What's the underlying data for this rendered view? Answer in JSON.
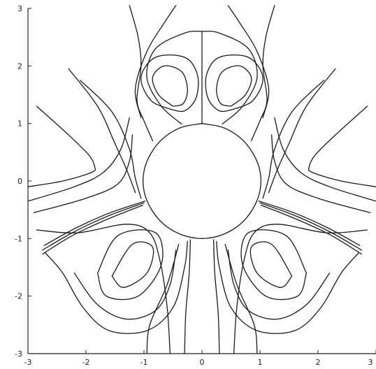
{
  "chart_data": {
    "type": "line",
    "title": "",
    "xlabel": "",
    "ylabel": "",
    "xlim": [
      -3,
      3
    ],
    "ylim": [
      -3,
      3
    ],
    "grid": false,
    "x_ticks": [
      -3,
      -2,
      -1,
      0,
      1,
      2,
      3
    ],
    "y_ticks": [
      -3,
      -2,
      -1,
      0,
      1,
      2,
      3
    ],
    "x_tick_labels": [
      "-3",
      "-2",
      "-1",
      "0",
      "1",
      "2",
      "3"
    ],
    "y_tick_labels": [
      "-3",
      "-2",
      "-1",
      "0",
      "1",
      "2",
      "3"
    ],
    "line_color": "#1a1a1a",
    "series": [
      {
        "points": [
          [
            0.0,
            1.0
          ],
          [
            0.36,
            0.93
          ],
          [
            0.66,
            0.75
          ],
          [
            0.88,
            0.48
          ],
          [
            1.0,
            0.17
          ],
          [
            1.0,
            -0.17
          ],
          [
            0.88,
            -0.48
          ],
          [
            0.66,
            -0.75
          ],
          [
            0.36,
            -0.93
          ],
          [
            0.0,
            -1.0
          ],
          [
            -0.36,
            -0.93
          ],
          [
            -0.66,
            -0.75
          ],
          [
            -0.88,
            -0.48
          ],
          [
            -1.0,
            -0.17
          ],
          [
            -1.0,
            0.17
          ],
          [
            -0.88,
            0.48
          ],
          [
            -0.66,
            0.75
          ],
          [
            -0.36,
            0.93
          ],
          [
            0.0,
            1.0
          ]
        ]
      },
      {
        "points": [
          [
            0.0,
            1.0
          ],
          [
            0.0,
            2.6
          ]
        ]
      },
      {
        "points": [
          [
            -0.35,
            0.99
          ],
          [
            -0.7,
            1.3
          ],
          [
            -0.95,
            1.8
          ],
          [
            -0.8,
            2.3
          ],
          [
            -0.3,
            2.57
          ],
          [
            0.0,
            2.6
          ],
          [
            0.3,
            2.57
          ],
          [
            0.8,
            2.3
          ],
          [
            0.95,
            1.8
          ],
          [
            0.7,
            1.3
          ],
          [
            0.35,
            0.99
          ]
        ]
      },
      {
        "points": [
          [
            -0.5,
            1.3
          ],
          [
            -0.75,
            1.5
          ],
          [
            -0.85,
            1.8
          ],
          [
            -0.65,
            2.0
          ],
          [
            -0.35,
            1.9
          ],
          [
            -0.25,
            1.6
          ],
          [
            -0.32,
            1.35
          ],
          [
            -0.5,
            1.3
          ]
        ]
      },
      {
        "points": [
          [
            -0.55,
            1.25
          ],
          [
            -0.88,
            1.4
          ],
          [
            -1.05,
            1.8
          ],
          [
            -0.8,
            2.15
          ],
          [
            -0.3,
            2.15
          ],
          [
            -0.08,
            1.85
          ],
          [
            -0.1,
            1.45
          ],
          [
            -0.3,
            1.22
          ],
          [
            -0.55,
            1.25
          ]
        ]
      },
      {
        "points": [
          [
            0.5,
            1.3
          ],
          [
            0.75,
            1.5
          ],
          [
            0.85,
            1.8
          ],
          [
            0.65,
            2.0
          ],
          [
            0.35,
            1.9
          ],
          [
            0.25,
            1.6
          ],
          [
            0.32,
            1.35
          ],
          [
            0.5,
            1.3
          ]
        ]
      },
      {
        "points": [
          [
            0.55,
            1.25
          ],
          [
            0.88,
            1.4
          ],
          [
            1.05,
            1.8
          ],
          [
            0.8,
            2.15
          ],
          [
            0.3,
            2.15
          ],
          [
            0.08,
            1.85
          ],
          [
            0.1,
            1.45
          ],
          [
            0.3,
            1.22
          ],
          [
            0.55,
            1.25
          ]
        ]
      },
      {
        "points": [
          [
            -1.25,
            3.05
          ],
          [
            -1.1,
            2.5
          ],
          [
            -1.05,
            2.0
          ],
          [
            -1.12,
            1.4
          ],
          [
            -1.0,
            1.05
          ],
          [
            -0.85,
            0.7
          ]
        ]
      },
      {
        "points": [
          [
            1.25,
            3.05
          ],
          [
            1.1,
            2.5
          ],
          [
            1.05,
            2.0
          ],
          [
            1.12,
            1.4
          ],
          [
            1.0,
            1.05
          ],
          [
            0.85,
            0.7
          ]
        ]
      },
      {
        "points": [
          [
            -0.45,
            3.05
          ],
          [
            -0.65,
            2.75
          ],
          [
            -0.95,
            2.25
          ],
          [
            -1.15,
            1.6
          ],
          [
            -1.05,
            1.1
          ]
        ]
      },
      {
        "points": [
          [
            0.45,
            3.05
          ],
          [
            0.65,
            2.75
          ],
          [
            0.95,
            2.25
          ],
          [
            1.15,
            1.6
          ],
          [
            1.05,
            1.1
          ]
        ]
      },
      {
        "points": [
          [
            -2.3,
            1.95
          ],
          [
            -1.8,
            1.3
          ],
          [
            -1.5,
            0.65
          ],
          [
            -1.3,
            0.2
          ],
          [
            -1.15,
            -0.2
          ]
        ]
      },
      {
        "points": [
          [
            2.3,
            1.95
          ],
          [
            1.8,
            1.3
          ],
          [
            1.5,
            0.65
          ],
          [
            1.3,
            0.2
          ],
          [
            1.15,
            -0.2
          ]
        ]
      },
      {
        "points": [
          [
            -2.1,
            1.75
          ],
          [
            -1.55,
            1.2
          ],
          [
            -1.25,
            0.55
          ],
          [
            -1.15,
            0.05
          ],
          [
            -1.05,
            -0.3
          ]
        ]
      },
      {
        "points": [
          [
            2.1,
            1.75
          ],
          [
            1.55,
            1.2
          ],
          [
            1.25,
            0.55
          ],
          [
            1.15,
            0.05
          ],
          [
            1.05,
            -0.3
          ]
        ]
      },
      {
        "points": [
          [
            -2.85,
            1.3
          ],
          [
            -2.3,
            0.8
          ],
          [
            -1.95,
            0.45
          ],
          [
            -1.85,
            0.25
          ],
          [
            -1.9,
            0.15
          ],
          [
            -2.4,
            0.0
          ],
          [
            -3.0,
            -0.1
          ]
        ]
      },
      {
        "points": [
          [
            -3.0,
            -0.35
          ],
          [
            -2.2,
            -0.1
          ],
          [
            -1.7,
            0.15
          ],
          [
            -1.4,
            0.55
          ],
          [
            -1.25,
            1.1
          ]
        ]
      },
      {
        "points": [
          [
            -2.9,
            -0.55
          ],
          [
            -2.0,
            -0.3
          ],
          [
            -1.45,
            -0.05
          ],
          [
            -1.25,
            0.35
          ],
          [
            -1.2,
            0.8
          ]
        ]
      },
      {
        "points": [
          [
            2.85,
            1.3
          ],
          [
            2.3,
            0.8
          ],
          [
            1.95,
            0.45
          ],
          [
            1.85,
            0.25
          ],
          [
            1.9,
            0.15
          ],
          [
            2.4,
            0.0
          ],
          [
            3.0,
            -0.1
          ]
        ]
      },
      {
        "points": [
          [
            3.0,
            -0.35
          ],
          [
            2.2,
            -0.1
          ],
          [
            1.7,
            0.15
          ],
          [
            1.4,
            0.55
          ],
          [
            1.25,
            1.1
          ]
        ]
      },
      {
        "points": [
          [
            2.9,
            -0.55
          ],
          [
            2.0,
            -0.3
          ],
          [
            1.45,
            -0.05
          ],
          [
            1.25,
            0.35
          ],
          [
            1.2,
            0.8
          ]
        ]
      },
      {
        "points": [
          [
            -1.0,
            -0.38
          ],
          [
            -1.6,
            -0.6
          ],
          [
            -2.2,
            -0.88
          ],
          [
            -2.75,
            -1.2
          ]
        ]
      },
      {
        "points": [
          [
            -1.02,
            -0.42
          ],
          [
            -1.62,
            -0.66
          ],
          [
            -2.22,
            -0.94
          ],
          [
            -2.75,
            -1.27
          ]
        ]
      },
      {
        "points": [
          [
            -0.98,
            -0.35
          ],
          [
            -1.58,
            -0.55
          ],
          [
            -2.18,
            -0.82
          ],
          [
            -2.72,
            -1.12
          ]
        ]
      },
      {
        "points": [
          [
            1.0,
            -0.38
          ],
          [
            1.6,
            -0.6
          ],
          [
            2.2,
            -0.88
          ],
          [
            2.75,
            -1.2
          ]
        ]
      },
      {
        "points": [
          [
            1.02,
            -0.42
          ],
          [
            1.62,
            -0.66
          ],
          [
            2.22,
            -0.94
          ],
          [
            2.75,
            -1.27
          ]
        ]
      },
      {
        "points": [
          [
            0.98,
            -0.35
          ],
          [
            1.58,
            -0.55
          ],
          [
            2.18,
            -0.82
          ],
          [
            2.72,
            -1.12
          ]
        ]
      },
      {
        "points": [
          [
            -1.55,
            -1.65
          ],
          [
            -1.2,
            -1.1
          ],
          [
            -0.85,
            -1.15
          ],
          [
            -0.95,
            -1.6
          ],
          [
            -1.35,
            -1.85
          ],
          [
            -1.55,
            -1.65
          ]
        ]
      },
      {
        "points": [
          [
            -1.8,
            -1.6
          ],
          [
            -1.45,
            -0.95
          ],
          [
            -0.8,
            -0.9
          ],
          [
            -0.7,
            -1.45
          ],
          [
            -1.1,
            -2.0
          ],
          [
            -1.65,
            -2.0
          ],
          [
            -1.8,
            -1.6
          ]
        ]
      },
      {
        "points": [
          [
            1.55,
            -1.65
          ],
          [
            1.2,
            -1.1
          ],
          [
            0.85,
            -1.15
          ],
          [
            0.95,
            -1.6
          ],
          [
            1.35,
            -1.85
          ],
          [
            1.55,
            -1.65
          ]
        ]
      },
      {
        "points": [
          [
            1.8,
            -1.6
          ],
          [
            1.45,
            -0.95
          ],
          [
            0.8,
            -0.9
          ],
          [
            0.7,
            -1.45
          ],
          [
            1.1,
            -2.0
          ],
          [
            1.65,
            -2.0
          ],
          [
            1.8,
            -1.6
          ]
        ]
      },
      {
        "points": [
          [
            -2.85,
            -0.85
          ],
          [
            -2.15,
            -0.9
          ],
          [
            -1.3,
            -0.75
          ],
          [
            -0.9,
            -0.9
          ],
          [
            -0.72,
            -1.4
          ],
          [
            -0.6,
            -2.2
          ],
          [
            -0.55,
            -3.0
          ]
        ]
      },
      {
        "points": [
          [
            -2.7,
            -1.25
          ],
          [
            -2.4,
            -1.6
          ],
          [
            -2.05,
            -2.2
          ],
          [
            -1.6,
            -2.6
          ],
          [
            -0.95,
            -2.6
          ],
          [
            -0.5,
            -2.2
          ],
          [
            -0.3,
            -1.5
          ],
          [
            -0.25,
            -1.05
          ]
        ]
      },
      {
        "points": [
          [
            -2.2,
            -1.6
          ],
          [
            -1.8,
            -2.15
          ],
          [
            -1.3,
            -2.4
          ],
          [
            -0.8,
            -2.25
          ],
          [
            -0.55,
            -1.8
          ],
          [
            -0.45,
            -1.2
          ]
        ]
      },
      {
        "points": [
          [
            2.85,
            -0.85
          ],
          [
            2.15,
            -0.9
          ],
          [
            1.3,
            -0.75
          ],
          [
            0.9,
            -0.9
          ],
          [
            0.72,
            -1.4
          ],
          [
            0.6,
            -2.2
          ],
          [
            0.55,
            -3.0
          ]
        ]
      },
      {
        "points": [
          [
            2.7,
            -1.25
          ],
          [
            2.4,
            -1.6
          ],
          [
            2.05,
            -2.2
          ],
          [
            1.6,
            -2.6
          ],
          [
            0.95,
            -2.6
          ],
          [
            0.5,
            -2.2
          ],
          [
            0.3,
            -1.5
          ],
          [
            0.25,
            -1.05
          ]
        ]
      },
      {
        "points": [
          [
            2.2,
            -1.6
          ],
          [
            1.8,
            -2.15
          ],
          [
            1.3,
            -2.4
          ],
          [
            0.8,
            -2.25
          ],
          [
            0.55,
            -1.8
          ],
          [
            0.45,
            -1.2
          ]
        ]
      },
      {
        "points": [
          [
            -0.95,
            -3.0
          ],
          [
            -0.9,
            -2.5
          ],
          [
            -0.6,
            -1.8
          ],
          [
            -0.4,
            -1.1
          ]
        ]
      },
      {
        "points": [
          [
            -0.3,
            -3.0
          ],
          [
            -0.28,
            -2.3
          ],
          [
            -0.22,
            -1.6
          ],
          [
            -0.2,
            -1.02
          ]
        ]
      },
      {
        "points": [
          [
            0.95,
            -3.0
          ],
          [
            0.9,
            -2.5
          ],
          [
            0.6,
            -1.8
          ],
          [
            0.4,
            -1.1
          ]
        ]
      },
      {
        "points": [
          [
            0.3,
            -3.0
          ],
          [
            0.28,
            -2.3
          ],
          [
            0.22,
            -1.6
          ],
          [
            0.2,
            -1.02
          ]
        ]
      }
    ]
  }
}
